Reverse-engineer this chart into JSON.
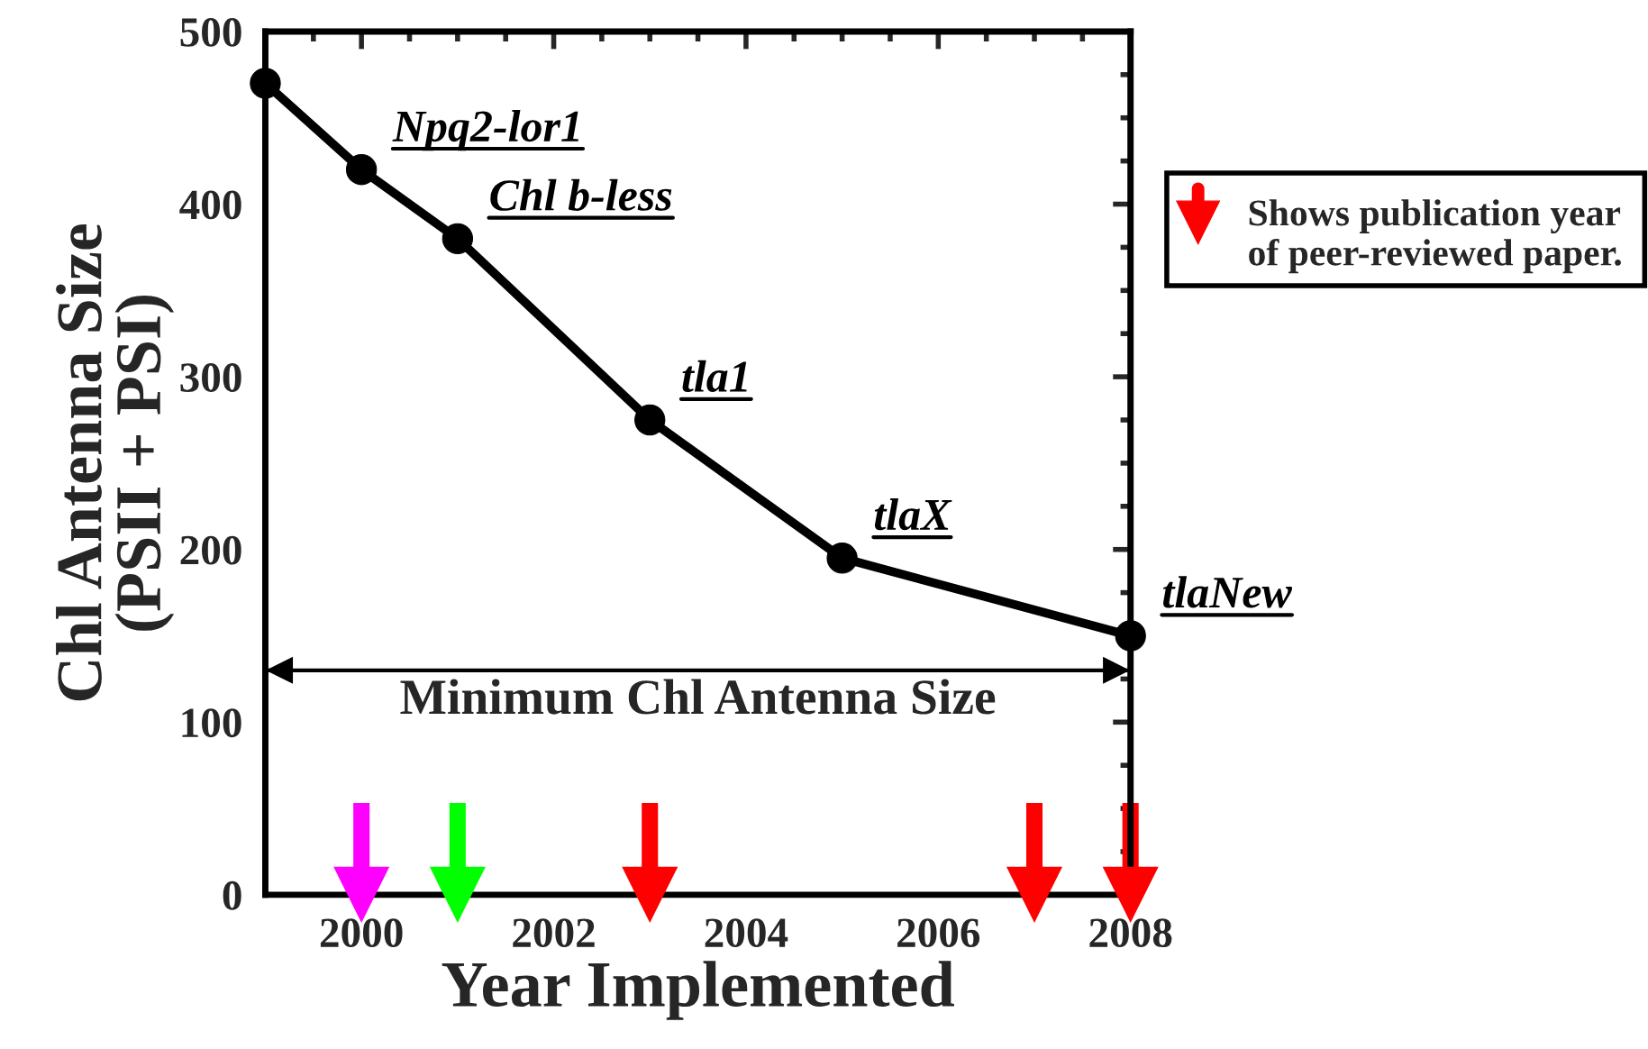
{
  "chart_data": {
    "type": "line",
    "xlabel": "Year Implemented",
    "ylabel": "Chl Antenna Size\n(PSII + PSI)",
    "xlim": [
      1999,
      2008
    ],
    "xticks": [
      2000,
      2002,
      2004,
      2006,
      2008
    ],
    "ylim": [
      0,
      500
    ],
    "yticks": [
      0,
      100,
      200,
      300,
      400,
      500
    ],
    "marker": "circle",
    "line_style": "solid",
    "grid": false,
    "legend": "right",
    "series": [
      {
        "color": "#000000",
        "x": [
          1999,
          2000,
          2001,
          2003,
          2005,
          2008
        ],
        "values": [
          470,
          420,
          380,
          275,
          195,
          150
        ]
      },
      {
        "type": "scatter",
        "marker": "triangle",
        "name": "Shows publication year of peer-reviewed paper.",
        "x": [
          2000,
          2001,
          2003,
          2007,
          2008
        ],
        "values": [
          0,
          0,
          0,
          0,
          0
        ],
        "colors": [
          "#ff00ff",
          "#00ff00",
          "#ff0000",
          "#ff0000",
          "#ff0000"
        ],
        "color": "#ff0000"
      }
    ],
    "annotations": [
      {
        "text": "Npq2-lor1",
        "x": 2000,
        "y": 420
      },
      {
        "text": "Chl b-less",
        "x": 2001,
        "y": 380
      },
      {
        "text": "tla1",
        "x": 2003,
        "y": 275
      },
      {
        "text": "tlaX",
        "x": 2005,
        "y": 195
      },
      {
        "text": "tlaNew",
        "x": 2008,
        "y": 150
      }
    ],
    "ref_lines": [
      {
        "axis": "y",
        "value": 130,
        "label": "Minimum Chl Antenna Size",
        "color": "#000000"
      }
    ]
  }
}
